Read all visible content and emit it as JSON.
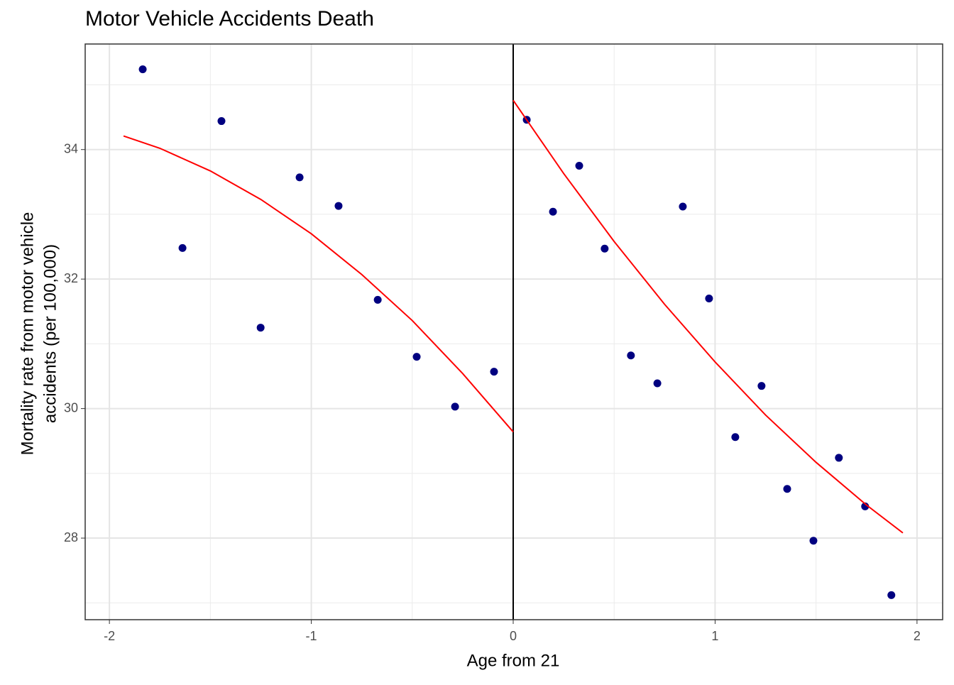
{
  "chart_data": {
    "type": "scatter",
    "title": "Motor Vehicle Accidents Death",
    "xlabel": "Age from 21",
    "ylabel": [
      "Mortality rate from motor vehicle",
      "accidents (per 100,000)"
    ],
    "xlim": [
      -2.12,
      2.127
    ],
    "ylim": [
      26.74,
      35.63
    ],
    "xticks": [
      -2,
      -1,
      0,
      1,
      2
    ],
    "yticks": [
      28,
      30,
      32,
      34
    ],
    "grid": true,
    "vline": {
      "x": 0,
      "color": "#000000"
    },
    "series": [
      {
        "type": "scatter",
        "color": "#000080",
        "x": [
          -1.835,
          -1.638,
          -1.445,
          -1.251,
          -1.058,
          -0.865,
          -0.671,
          -0.478,
          -0.288,
          -0.095
        ],
        "values": [
          35.24,
          32.48,
          34.44,
          31.25,
          33.57,
          33.13,
          31.68,
          30.8,
          30.03,
          30.57
        ]
      },
      {
        "type": "scatter",
        "color": "#000080",
        "x": [
          0.067,
          0.197,
          0.327,
          0.453,
          0.583,
          0.714,
          0.84,
          0.97,
          1.1,
          1.23,
          1.357,
          1.487,
          1.613,
          1.743,
          1.873
        ],
        "values": [
          34.46,
          33.04,
          33.75,
          32.47,
          30.82,
          30.39,
          33.12,
          31.7,
          29.56,
          30.35,
          28.76,
          27.96,
          29.24,
          28.49,
          27.12
        ]
      },
      {
        "type": "line",
        "color": "#ff0000",
        "x": [
          -1.93,
          -1.75,
          -1.5,
          -1.25,
          -1,
          -0.75,
          -0.5,
          -0.25,
          0
        ],
        "values": [
          34.21,
          34.02,
          33.67,
          33.23,
          32.7,
          32.07,
          31.36,
          30.54,
          29.64
        ]
      },
      {
        "type": "line",
        "color": "#ff0000",
        "x": [
          0,
          0.25,
          0.5,
          0.75,
          1,
          1.25,
          1.5,
          1.75,
          1.93
        ],
        "values": [
          34.76,
          33.63,
          32.58,
          31.61,
          30.72,
          29.9,
          29.17,
          28.51,
          28.08
        ]
      }
    ]
  }
}
